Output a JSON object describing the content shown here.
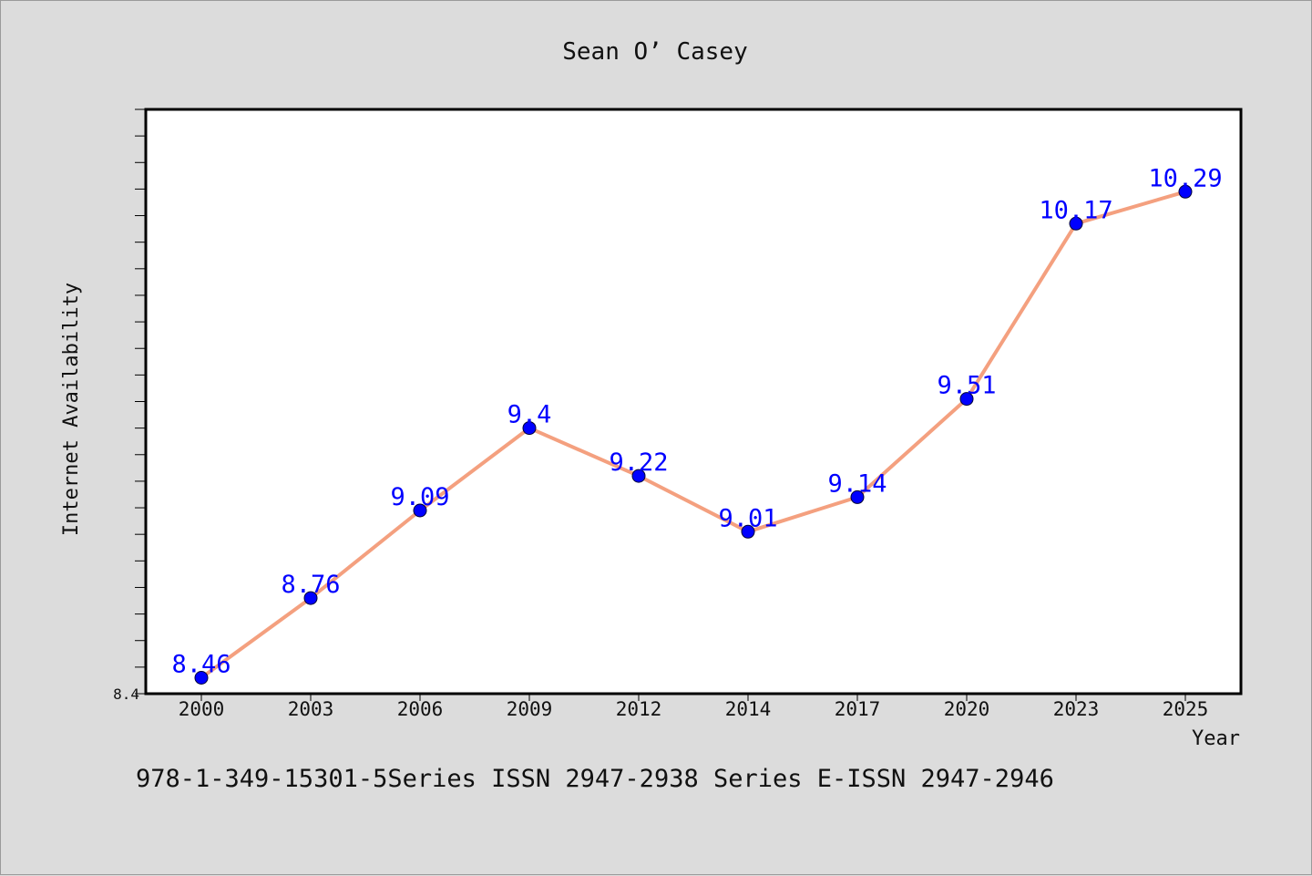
{
  "chart_data": {
    "type": "line",
    "title": "Sean O’ Casey",
    "xlabel": "Year",
    "ylabel": "Internet Availability",
    "categories": [
      "2000",
      "2003",
      "2006",
      "2009",
      "2012",
      "2014",
      "2017",
      "2020",
      "2023",
      "2025"
    ],
    "series": [
      {
        "values": [
          8.46,
          8.76,
          9.09,
          9.4,
          9.22,
          9.01,
          9.14,
          9.51,
          10.17,
          10.29
        ]
      }
    ],
    "data_labels": [
      "8.46",
      "8.76",
      "9.09",
      "9.4",
      "9.22",
      "9.01",
      "9.14",
      "9.51",
      "10.17",
      "10.29"
    ],
    "y_tick_labels": [
      "8.4"
    ],
    "ylim": [
      8.4,
      10.6
    ],
    "grid": false,
    "line_color": "#f4a07f",
    "marker_color": "#0000ff",
    "label_color": "#0000ff"
  },
  "footer": {
    "caption": "978-1-349-15301-5Series ISSN 2947-2938 Series E-ISSN 2947-2946"
  }
}
